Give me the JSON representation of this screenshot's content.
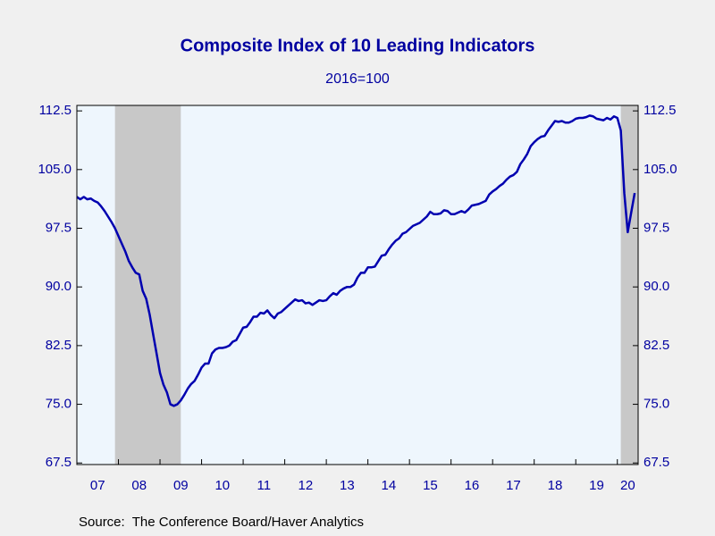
{
  "chart_data": {
    "type": "line",
    "title": "Composite Index of 10 Leading Indicators",
    "subtitle": "2016=100",
    "source": "Source:  The Conference Board/Haver Analytics",
    "xlim": [
      2007,
      2020.5
    ],
    "xticks": [
      {
        "value": 2007,
        "label": "07"
      },
      {
        "value": 2008,
        "label": "08"
      },
      {
        "value": 2009,
        "label": "09"
      },
      {
        "value": 2010,
        "label": "10"
      },
      {
        "value": 2011,
        "label": "11"
      },
      {
        "value": 2012,
        "label": "12"
      },
      {
        "value": 2013,
        "label": "13"
      },
      {
        "value": 2014,
        "label": "14"
      },
      {
        "value": 2015,
        "label": "15"
      },
      {
        "value": 2016,
        "label": "16"
      },
      {
        "value": 2017,
        "label": "17"
      },
      {
        "value": 2018,
        "label": "18"
      },
      {
        "value": 2019,
        "label": "19"
      },
      {
        "value": 2020,
        "label": "20"
      }
    ],
    "ylim": [
      67.3,
      113.2
    ],
    "yticks": [
      67.5,
      {
        "value": 75,
        "label": "75.0"
      },
      82.5,
      {
        "value": 90,
        "label": "90.0"
      },
      97.5,
      {
        "value": 105,
        "label": "105.0"
      },
      112.5
    ],
    "recessions": [
      [
        2007.917,
        2009.5
      ],
      [
        2020.083,
        2020.5
      ]
    ],
    "recession_color": "#c8c8c8",
    "plot_background": "#eef6fd",
    "x": [
      2007,
      2007.083,
      2007.167,
      2007.25,
      2007.333,
      2007.417,
      2007.5,
      2007.583,
      2007.667,
      2007.75,
      2007.833,
      2007.917,
      2008,
      2008.083,
      2008.167,
      2008.25,
      2008.333,
      2008.417,
      2008.5,
      2008.583,
      2008.667,
      2008.75,
      2008.833,
      2008.917,
      2009,
      2009.083,
      2009.167,
      2009.25,
      2009.333,
      2009.417,
      2009.5,
      2009.583,
      2009.667,
      2009.75,
      2009.833,
      2009.917,
      2010,
      2010.083,
      2010.167,
      2010.25,
      2010.333,
      2010.417,
      2010.5,
      2010.583,
      2010.667,
      2010.75,
      2010.833,
      2010.917,
      2011,
      2011.083,
      2011.167,
      2011.25,
      2011.333,
      2011.417,
      2011.5,
      2011.583,
      2011.667,
      2011.75,
      2011.833,
      2011.917,
      2012,
      2012.083,
      2012.167,
      2012.25,
      2012.333,
      2012.417,
      2012.5,
      2012.583,
      2012.667,
      2012.75,
      2012.833,
      2012.917,
      2013,
      2013.083,
      2013.167,
      2013.25,
      2013.333,
      2013.417,
      2013.5,
      2013.583,
      2013.667,
      2013.75,
      2013.833,
      2013.917,
      2014,
      2014.083,
      2014.167,
      2014.25,
      2014.333,
      2014.417,
      2014.5,
      2014.583,
      2014.667,
      2014.75,
      2014.833,
      2014.917,
      2015,
      2015.083,
      2015.167,
      2015.25,
      2015.333,
      2015.417,
      2015.5,
      2015.583,
      2015.667,
      2015.75,
      2015.833,
      2015.917,
      2016,
      2016.083,
      2016.167,
      2016.25,
      2016.333,
      2016.417,
      2016.5,
      2016.583,
      2016.667,
      2016.75,
      2016.833,
      2016.917,
      2017,
      2017.083,
      2017.167,
      2017.25,
      2017.333,
      2017.417,
      2017.5,
      2017.583,
      2017.667,
      2017.75,
      2017.833,
      2017.917,
      2018,
      2018.083,
      2018.167,
      2018.25,
      2018.333,
      2018.417,
      2018.5,
      2018.583,
      2018.667,
      2018.75,
      2018.833,
      2018.917,
      2019,
      2019.083,
      2019.167,
      2019.25,
      2019.333,
      2019.417,
      2019.5,
      2019.583,
      2019.667,
      2019.75,
      2019.833,
      2019.917,
      2020,
      2020.083,
      2020.167,
      2020.25,
      2020.333,
      2020.417
    ],
    "series": [
      {
        "color": "#0000b0",
        "values": [
          101.5,
          101.2,
          101.5,
          101.2,
          101.3,
          101.0,
          100.8,
          100.3,
          99.7,
          99.0,
          98.3,
          97.5,
          96.5,
          95.5,
          94.5,
          93.3,
          92.5,
          91.8,
          91.6,
          89.5,
          88.5,
          86.5,
          84.0,
          81.5,
          79.0,
          77.5,
          76.5,
          75.0,
          74.8,
          75.0,
          75.5,
          76.2,
          77.0,
          77.6,
          78.0,
          78.8,
          79.7,
          80.2,
          80.2,
          81.5,
          82.0,
          82.2,
          82.2,
          82.3,
          82.5,
          83.0,
          83.2,
          84.0,
          84.8,
          84.9,
          85.5,
          86.2,
          86.2,
          86.7,
          86.6,
          87.0,
          86.4,
          86.0,
          86.6,
          86.8,
          87.2,
          87.6,
          88.0,
          88.4,
          88.2,
          88.3,
          87.9,
          88.0,
          87.7,
          88.0,
          88.3,
          88.2,
          88.3,
          88.8,
          89.2,
          89.0,
          89.5,
          89.8,
          90.0,
          90.0,
          90.3,
          91.2,
          91.8,
          91.8,
          92.5,
          92.5,
          92.6,
          93.3,
          94.0,
          94.1,
          94.8,
          95.4,
          95.9,
          96.2,
          96.8,
          97.0,
          97.4,
          97.8,
          98.0,
          98.2,
          98.6,
          99.0,
          99.6,
          99.3,
          99.3,
          99.4,
          99.8,
          99.7,
          99.3,
          99.3,
          99.5,
          99.7,
          99.5,
          99.9,
          100.4,
          100.5,
          100.6,
          100.8,
          101.0,
          101.8,
          102.2,
          102.5,
          102.9,
          103.2,
          103.7,
          104.1,
          104.3,
          104.7,
          105.7,
          106.3,
          107.0,
          108.0,
          108.5,
          108.9,
          109.2,
          109.3,
          110.0,
          110.6,
          111.2,
          111.1,
          111.2,
          111.0,
          111.0,
          111.2,
          111.5,
          111.6,
          111.6,
          111.7,
          111.9,
          111.8,
          111.5,
          111.4,
          111.3,
          111.6,
          111.4,
          111.8,
          111.6,
          110.0,
          102.0,
          97.0,
          99.5,
          102.0
        ]
      }
    ]
  }
}
